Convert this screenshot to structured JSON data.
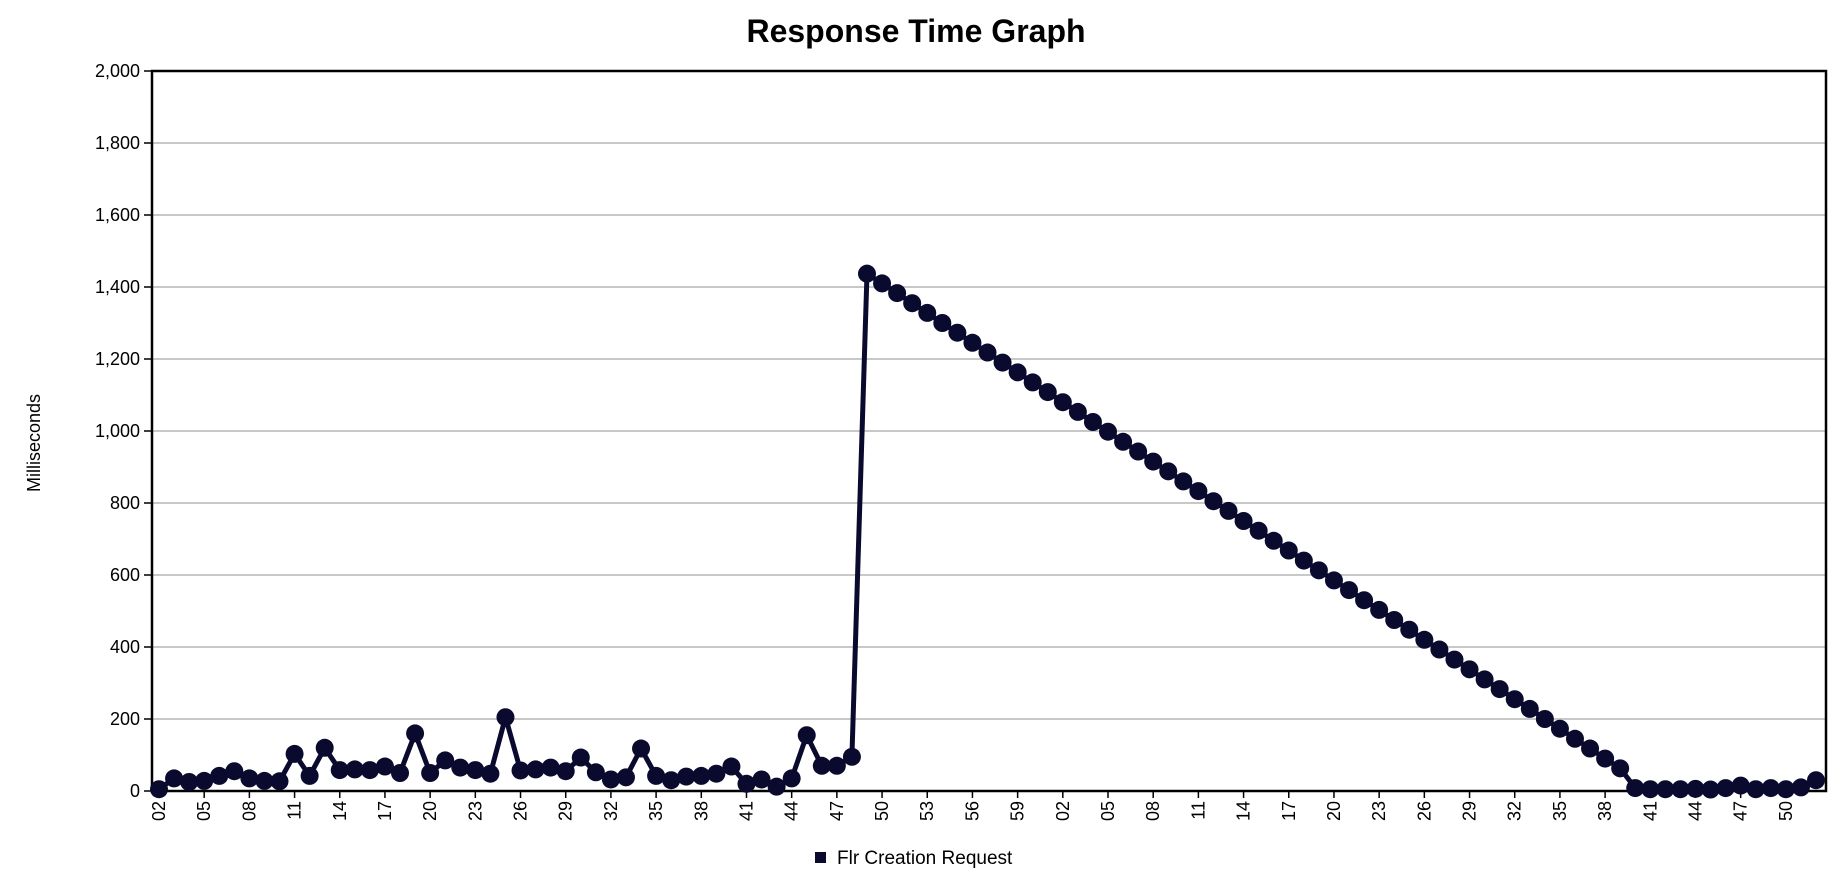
{
  "chart_data": {
    "type": "line",
    "title": "Response Time Graph",
    "xlabel": "",
    "ylabel": "Milliseconds",
    "ylim": [
      0,
      2000
    ],
    "yticks": [
      0,
      200,
      400,
      600,
      800,
      1000,
      1200,
      1400,
      1600,
      1800,
      2000
    ],
    "ytick_labels": [
      "0",
      "200",
      "400",
      "600",
      "800",
      "1,000",
      "1,200",
      "1,400",
      "1,600",
      "1,800",
      "2,000"
    ],
    "grid": true,
    "legend_position": "bottom-center",
    "x_tick_every": 3,
    "x": [
      "02",
      "03",
      "04",
      "05",
      "06",
      "07",
      "08",
      "09",
      "10",
      "11",
      "12",
      "13",
      "14",
      "15",
      "16",
      "17",
      "18",
      "19",
      "20",
      "21",
      "22",
      "23",
      "24",
      "25",
      "26",
      "27",
      "28",
      "29",
      "30",
      "31",
      "32",
      "33",
      "34",
      "35",
      "36",
      "37",
      "38",
      "39",
      "40",
      "41",
      "42",
      "43",
      "44",
      "45",
      "46",
      "47",
      "48",
      "49",
      "50",
      "51",
      "52",
      "53",
      "54",
      "55",
      "56",
      "57",
      "58",
      "59",
      "00",
      "01",
      "02",
      "03",
      "04",
      "05",
      "06",
      "07",
      "08",
      "09",
      "10",
      "11",
      "12",
      "13",
      "14",
      "15",
      "16",
      "17",
      "18",
      "19",
      "20",
      "21",
      "22",
      "23",
      "24",
      "25",
      "26",
      "27",
      "28",
      "29",
      "30",
      "31",
      "32",
      "33",
      "34",
      "35",
      "36",
      "37",
      "38",
      "39",
      "40",
      "41",
      "42",
      "43",
      "44",
      "45",
      "46",
      "47",
      "48",
      "49",
      "50",
      "51",
      "52"
    ],
    "series": [
      {
        "name": "Flr Creation Request",
        "color": "#0a0a2e",
        "values": [
          5,
          35,
          25,
          28,
          42,
          55,
          35,
          28,
          27,
          103,
          42,
          120,
          58,
          60,
          58,
          68,
          50,
          160,
          50,
          85,
          65,
          58,
          48,
          205,
          57,
          60,
          65,
          55,
          93,
          52,
          32,
          38,
          118,
          42,
          30,
          40,
          42,
          48,
          68,
          20,
          32,
          12,
          35,
          155,
          70,
          70,
          95,
          1437,
          1410,
          1383,
          1355,
          1328,
          1300,
          1273,
          1245,
          1218,
          1190,
          1163,
          1135,
          1108,
          1080,
          1053,
          1025,
          998,
          970,
          943,
          915,
          888,
          860,
          833,
          805,
          778,
          750,
          723,
          695,
          668,
          640,
          613,
          585,
          558,
          530,
          503,
          475,
          448,
          420,
          393,
          365,
          338,
          310,
          283,
          255,
          228,
          200,
          173,
          145,
          118,
          90,
          63,
          8,
          5,
          5,
          5,
          6,
          4,
          8,
          15,
          5,
          8,
          5,
          10,
          30
        ]
      }
    ]
  }
}
